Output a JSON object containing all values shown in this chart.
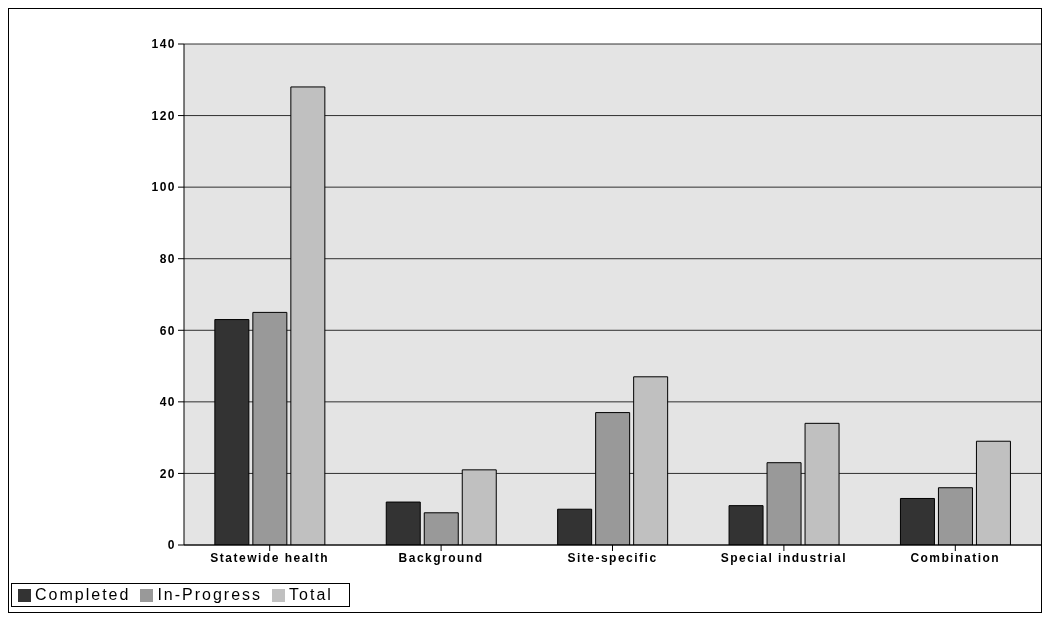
{
  "chart_data": {
    "type": "bar",
    "categories": [
      "Statewide health",
      "Background",
      "Site-specific",
      "Special industrial",
      "Combination"
    ],
    "series": [
      {
        "name": "Completed",
        "color": "#333333",
        "values": [
          63,
          12,
          10,
          11,
          13
        ]
      },
      {
        "name": "In-Progress",
        "color": "#999999",
        "values": [
          65,
          9,
          37,
          23,
          16
        ]
      },
      {
        "name": "Total",
        "color": "#c0c0c0",
        "values": [
          128,
          21,
          47,
          34,
          29
        ]
      }
    ],
    "ylim": [
      0,
      140
    ],
    "yticks": [
      0,
      20,
      40,
      60,
      80,
      100,
      120,
      140
    ],
    "grid": "y",
    "legend": "bottom left"
  }
}
